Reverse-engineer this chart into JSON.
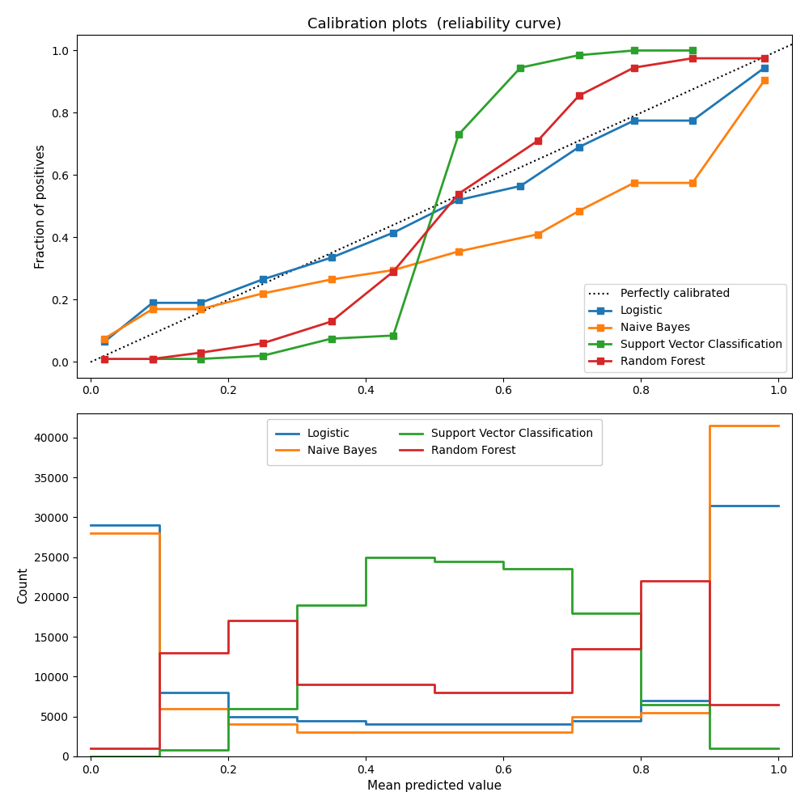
{
  "title": "Calibration plots  (reliability curve)",
  "xlabel": "Mean predicted value",
  "ylabel_top": "Fraction of positives",
  "ylabel_bottom": "Count",
  "perfectly_calibrated": {
    "x": [
      0.0,
      1.05
    ],
    "y": [
      0.0,
      1.05
    ]
  },
  "logistic": {
    "x": [
      0.02,
      0.09,
      0.16,
      0.25,
      0.35,
      0.44,
      0.535,
      0.625,
      0.71,
      0.79,
      0.875,
      0.98
    ],
    "y": [
      0.065,
      0.19,
      0.19,
      0.265,
      0.335,
      0.415,
      0.52,
      0.565,
      0.69,
      0.775,
      0.775,
      0.945
    ],
    "color": "#1f77b4"
  },
  "naive_bayes": {
    "x": [
      0.02,
      0.09,
      0.16,
      0.25,
      0.35,
      0.44,
      0.535,
      0.65,
      0.71,
      0.79,
      0.875,
      0.98
    ],
    "y": [
      0.075,
      0.17,
      0.17,
      0.22,
      0.265,
      0.295,
      0.355,
      0.41,
      0.485,
      0.575,
      0.575,
      0.905
    ],
    "color": "#ff7f0e"
  },
  "svc": {
    "x": [
      0.09,
      0.16,
      0.25,
      0.35,
      0.44,
      0.535,
      0.625,
      0.71,
      0.79,
      0.875
    ],
    "y": [
      0.01,
      0.01,
      0.02,
      0.075,
      0.085,
      0.73,
      0.945,
      0.985,
      1.0,
      1.0
    ],
    "color": "#2ca02c"
  },
  "random_forest": {
    "x": [
      0.02,
      0.09,
      0.16,
      0.25,
      0.35,
      0.44,
      0.535,
      0.65,
      0.71,
      0.79,
      0.875,
      0.98
    ],
    "y": [
      0.01,
      0.01,
      0.03,
      0.06,
      0.13,
      0.29,
      0.54,
      0.71,
      0.855,
      0.945,
      0.975,
      0.975
    ],
    "color": "#d62728"
  },
  "hist_logistic": {
    "bin_edges": [
      0.0,
      0.1,
      0.2,
      0.3,
      0.4,
      0.5,
      0.6,
      0.7,
      0.8,
      0.9,
      1.0
    ],
    "counts": [
      29000,
      8000,
      5000,
      4500,
      4000,
      4000,
      4000,
      4500,
      7000,
      31500
    ],
    "color": "#1f77b4"
  },
  "hist_naive_bayes": {
    "bin_edges": [
      0.0,
      0.1,
      0.2,
      0.3,
      0.4,
      0.5,
      0.6,
      0.7,
      0.8,
      0.9,
      1.0
    ],
    "counts": [
      28000,
      6000,
      4000,
      3000,
      3000,
      3000,
      3000,
      5000,
      5500,
      41500
    ],
    "color": "#ff7f0e"
  },
  "hist_svc": {
    "bin_edges": [
      0.0,
      0.1,
      0.2,
      0.3,
      0.4,
      0.5,
      0.6,
      0.7,
      0.8,
      0.9,
      1.0
    ],
    "counts": [
      0,
      800,
      6000,
      19000,
      25000,
      24500,
      23500,
      18000,
      6500,
      1000
    ],
    "color": "#2ca02c"
  },
  "hist_random_forest": {
    "bin_edges": [
      0.0,
      0.1,
      0.2,
      0.3,
      0.4,
      0.5,
      0.6,
      0.7,
      0.8,
      0.9,
      1.0
    ],
    "counts": [
      1000,
      13000,
      17000,
      9000,
      9000,
      8000,
      8000,
      13500,
      22000,
      6500
    ],
    "color": "#d62728"
  }
}
